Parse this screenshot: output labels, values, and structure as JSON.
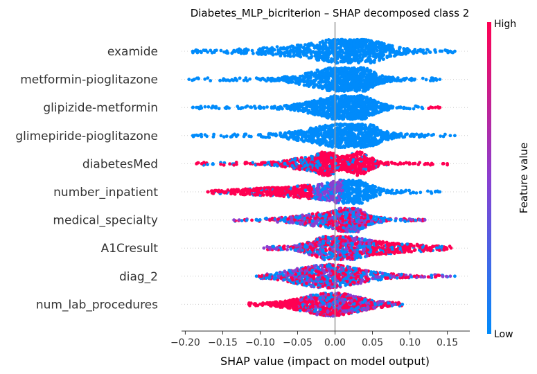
{
  "chart_data": {
    "type": "scatter",
    "subtype": "shap-beeswarm",
    "title": "Diabetes_MLP_bicriterion – SHAP decomposed class 2",
    "xlabel": "SHAP value (impact on model output)",
    "xlim": [
      -0.205,
      0.18
    ],
    "xticks": [
      -0.2,
      -0.15,
      -0.1,
      -0.05,
      0.0,
      0.05,
      0.1,
      0.15
    ],
    "xtick_labels": [
      "−0.20",
      "−0.15",
      "−0.10",
      "−0.05",
      "0.00",
      "0.05",
      "0.10",
      "0.15"
    ],
    "grid": false,
    "colorbar": {
      "label": "Feature value",
      "high_label": "High",
      "low_label": "Low",
      "high_color": "#ff0052",
      "mid_color": "#8a3fd0",
      "low_color": "#008bfb"
    },
    "features": [
      {
        "name": "examide",
        "min": -0.19,
        "max": 0.16,
        "color_mode": "low",
        "modes": [
          {
            "center": 0.026,
            "width": 0.028,
            "height": 1.0
          },
          {
            "center": -0.01,
            "width": 0.06,
            "height": 0.55
          }
        ]
      },
      {
        "name": "metformin-pioglitazone",
        "min": -0.195,
        "max": 0.14,
        "color_mode": "low",
        "modes": [
          {
            "center": 0.026,
            "width": 0.022,
            "height": 1.0
          },
          {
            "center": -0.01,
            "width": 0.03,
            "height": 0.75
          }
        ]
      },
      {
        "name": "glipizide-metformin",
        "min": -0.19,
        "max": 0.14,
        "color_mode": "low_red_tail",
        "modes": [
          {
            "center": 0.027,
            "width": 0.02,
            "height": 1.0
          },
          {
            "center": -0.005,
            "width": 0.03,
            "height": 0.7
          }
        ]
      },
      {
        "name": "glimepiride-pioglitazone",
        "min": -0.19,
        "max": 0.16,
        "color_mode": "low",
        "modes": [
          {
            "center": 0.032,
            "width": 0.022,
            "height": 1.0
          },
          {
            "center": -0.008,
            "width": 0.035,
            "height": 0.75
          }
        ]
      },
      {
        "name": "diabetesMed",
        "min": -0.185,
        "max": 0.15,
        "color_mode": "split",
        "modes": [
          {
            "center": 0.031,
            "width": 0.014,
            "height": 1.0
          },
          {
            "center": -0.01,
            "width": 0.012,
            "height": 0.9
          },
          {
            "center": -0.04,
            "width": 0.02,
            "height": 0.45
          }
        ]
      },
      {
        "name": "number_inpatient",
        "min": -0.17,
        "max": 0.14,
        "color_mode": "split_inverse",
        "modes": [
          {
            "center": 0.026,
            "width": 0.018,
            "height": 1.0
          },
          {
            "center": -0.01,
            "width": 0.03,
            "height": 0.55
          },
          {
            "center": -0.08,
            "width": 0.04,
            "height": 0.25
          }
        ]
      },
      {
        "name": "medical_specialty",
        "min": -0.135,
        "max": 0.12,
        "color_mode": "mixed",
        "modes": [
          {
            "center": 0.022,
            "width": 0.012,
            "height": 1.0
          },
          {
            "center": -0.005,
            "width": 0.035,
            "height": 0.6
          }
        ]
      },
      {
        "name": "A1Cresult",
        "min": -0.095,
        "max": 0.155,
        "color_mode": "mixed_red_right",
        "modes": [
          {
            "center": 0.0,
            "width": 0.025,
            "height": 1.0
          },
          {
            "center": 0.05,
            "width": 0.05,
            "height": 0.45
          }
        ]
      },
      {
        "name": "diag_2",
        "min": -0.105,
        "max": 0.16,
        "color_mode": "mixed",
        "modes": [
          {
            "center": -0.01,
            "width": 0.04,
            "height": 1.0
          }
        ]
      },
      {
        "name": "num_lab_procedures",
        "min": -0.115,
        "max": 0.09,
        "color_mode": "mixed_red_left",
        "modes": [
          {
            "center": -0.005,
            "width": 0.035,
            "height": 1.0
          }
        ]
      }
    ]
  }
}
